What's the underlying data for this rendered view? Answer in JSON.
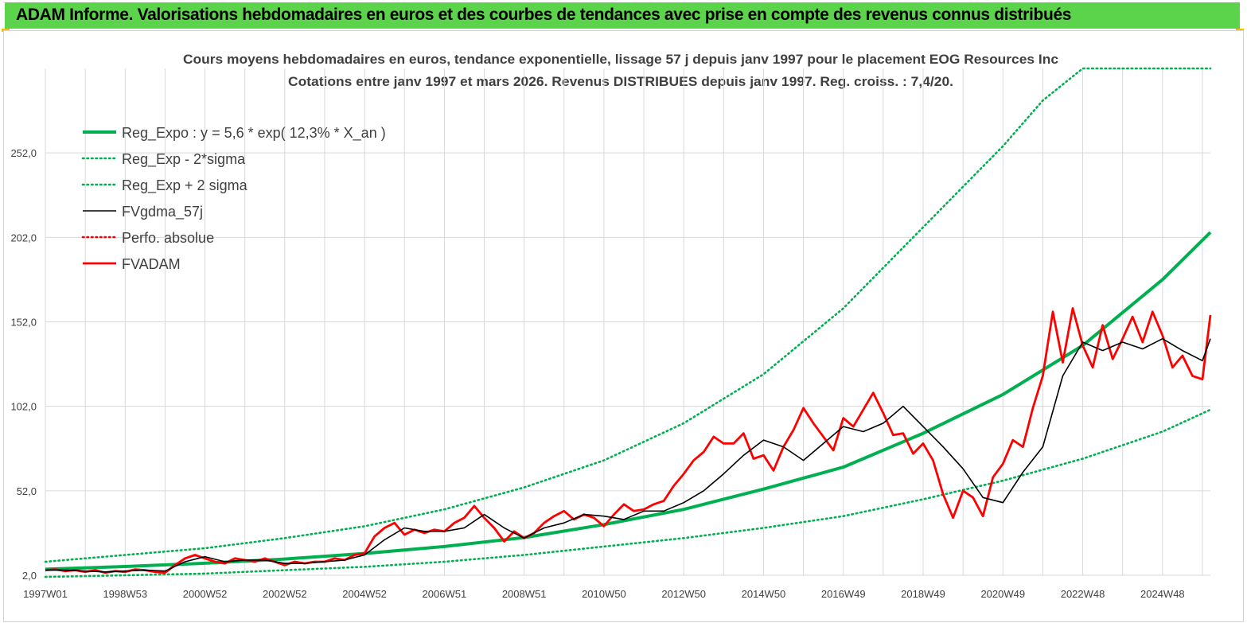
{
  "header": {
    "title": "ADAM Informe. Valorisations hebdomadaires en euros et des courbes de tendances avec prise en compte des revenus connus distribués"
  },
  "colors": {
    "banner": "#5bd34a",
    "corner_accent": "#f2c200",
    "reg_expo": "#00b050",
    "fvgdma": "#000000",
    "fvadam": "#ff0000",
    "perfo": "#ff0000",
    "grid": "#d9d9d9"
  },
  "chart_data": {
    "type": "line",
    "title": "Cours moyens hebdomadaires en euros, tendance exponentielle, lissage 57 j depuis janv 1997 pour le placement EOG Resources Inc",
    "subtitle": "Cotations entre janv 1997 et mars 2026. Revenus DISTRIBUES depuis janv 1997. Reg. croiss. : 7,4/20.",
    "xlabel": "",
    "ylabel": "",
    "x_range": [
      1997.0,
      2026.2
    ],
    "ylim": [
      2.0,
      302.0
    ],
    "y_ticks": [
      "2,0",
      "52,0",
      "102,0",
      "152,0",
      "202,0",
      "252,0"
    ],
    "x_ticks": [
      {
        "label": "1997W01",
        "x": 1997.0
      },
      {
        "label": "1998W53",
        "x": 1999.0
      },
      {
        "label": "2000W52",
        "x": 2001.0
      },
      {
        "label": "2002W52",
        "x": 2003.0
      },
      {
        "label": "2004W52",
        "x": 2005.0
      },
      {
        "label": "2006W51",
        "x": 2007.0
      },
      {
        "label": "2008W51",
        "x": 2009.0
      },
      {
        "label": "2010W50",
        "x": 2011.0
      },
      {
        "label": "2012W50",
        "x": 2013.0
      },
      {
        "label": "2014W50",
        "x": 2015.0
      },
      {
        "label": "2016W49",
        "x": 2017.0
      },
      {
        "label": "2018W49",
        "x": 2019.0
      },
      {
        "label": "2020W49",
        "x": 2021.0
      },
      {
        "label": "2022W48",
        "x": 2023.0
      },
      {
        "label": "2024W48",
        "x": 2025.0
      }
    ],
    "grid": true,
    "legend_position": "top-left",
    "series": [
      {
        "name": "Reg_Expo : y = 5,6 * exp( 12,3% *  X_an )",
        "style": "solid",
        "color": "#00b050",
        "x": [
          1997.0,
          1999.0,
          2001.0,
          2003.0,
          2005.0,
          2007.0,
          2009.0,
          2011.0,
          2013.0,
          2015.0,
          2017.0,
          2019.0,
          2021.0,
          2023.0,
          2025.0,
          2026.2
        ],
        "y": [
          5.6,
          7.2,
          9.1,
          11.6,
          14.9,
          19.0,
          24.3,
          32.0,
          41.0,
          53.0,
          66.0,
          86.0,
          109.0,
          138.0,
          177.0,
          205.0
        ]
      },
      {
        "name": "Reg_Exp - 2*sigma",
        "style": "dotted",
        "color": "#00b050",
        "x": [
          1997.0,
          1999.0,
          2001.0,
          2003.0,
          2005.0,
          2007.0,
          2009.0,
          2011.0,
          2013.0,
          2015.0,
          2017.0,
          2019.0,
          2021.0,
          2023.0,
          2025.0,
          2026.2
        ],
        "y": [
          1.0,
          2.0,
          3.0,
          5.0,
          7.0,
          10.0,
          14.0,
          19.0,
          24.0,
          30.0,
          37.0,
          47.0,
          58.0,
          71.0,
          87.0,
          100.0
        ]
      },
      {
        "name": "Reg_Exp + 2 sigma",
        "style": "dotted",
        "color": "#00b050",
        "x": [
          1997.0,
          1999.0,
          2001.0,
          2003.0,
          2005.0,
          2007.0,
          2009.0,
          2011.0,
          2013.0,
          2015.0,
          2017.0,
          2019.0,
          2021.0,
          2022.0,
          2023.0,
          2023.8,
          2026.2
        ],
        "y": [
          10.0,
          14.0,
          18.0,
          24.0,
          31.0,
          41.0,
          54.0,
          70.0,
          92.0,
          121.0,
          160.0,
          208.0,
          256.0,
          283.0,
          302.0,
          302.0,
          302.0
        ]
      },
      {
        "name": "FVgdma_57j",
        "style": "solid",
        "color": "#000000",
        "x": [
          1997.0,
          1997.5,
          1998.0,
          1998.5,
          1999.0,
          1999.5,
          2000.0,
          2000.5,
          2001.0,
          2001.5,
          2002.0,
          2002.5,
          2003.0,
          2003.5,
          2004.0,
          2004.5,
          2005.0,
          2005.5,
          2006.0,
          2006.5,
          2007.0,
          2007.5,
          2008.0,
          2008.5,
          2009.0,
          2009.5,
          2010.0,
          2010.5,
          2011.0,
          2011.5,
          2012.0,
          2012.5,
          2013.0,
          2013.5,
          2014.0,
          2014.5,
          2015.0,
          2015.5,
          2016.0,
          2016.5,
          2017.0,
          2017.5,
          2018.0,
          2018.5,
          2019.0,
          2019.5,
          2020.0,
          2020.5,
          2021.0,
          2021.5,
          2022.0,
          2022.5,
          2023.0,
          2023.5,
          2024.0,
          2024.5,
          2025.0,
          2025.5,
          2026.0,
          2026.2
        ],
        "y": [
          5.0,
          5.0,
          4.5,
          4.0,
          4.5,
          5.0,
          4.5,
          10.0,
          13.0,
          10.0,
          11.0,
          11.0,
          9.0,
          9.0,
          10.0,
          11.0,
          14.0,
          23.0,
          30.0,
          28.0,
          28.0,
          30.0,
          38.0,
          30.0,
          24.0,
          30.0,
          33.0,
          38.0,
          37.0,
          35.0,
          40.0,
          40.0,
          45.0,
          52.0,
          62.0,
          73.0,
          82.0,
          78.0,
          70.0,
          80.0,
          90.0,
          87.0,
          92.0,
          102.0,
          90.0,
          78.0,
          65.0,
          48.0,
          45.0,
          63.0,
          78.0,
          120.0,
          140.0,
          135.0,
          140.0,
          136.0,
          142.0,
          135.0,
          129.0,
          142.0
        ]
      },
      {
        "name": "Perfo. absolue",
        "style": "dotted",
        "color": "#ff0000",
        "x": [],
        "y": []
      },
      {
        "name": "FVADAM",
        "style": "solid",
        "color": "#ff0000",
        "x": [
          1997.0,
          1997.25,
          1997.5,
          1997.75,
          1998.0,
          1998.25,
          1998.5,
          1998.75,
          1999.0,
          1999.25,
          1999.5,
          1999.75,
          2000.0,
          2000.25,
          2000.5,
          2000.75,
          2001.0,
          2001.25,
          2001.5,
          2001.75,
          2002.0,
          2002.25,
          2002.5,
          2002.75,
          2003.0,
          2003.25,
          2003.5,
          2003.75,
          2004.0,
          2004.25,
          2004.5,
          2004.75,
          2005.0,
          2005.25,
          2005.5,
          2005.75,
          2006.0,
          2006.25,
          2006.5,
          2006.75,
          2007.0,
          2007.25,
          2007.5,
          2007.75,
          2008.0,
          2008.25,
          2008.5,
          2008.75,
          2009.0,
          2009.25,
          2009.5,
          2009.75,
          2010.0,
          2010.25,
          2010.5,
          2010.75,
          2011.0,
          2011.25,
          2011.5,
          2011.75,
          2012.0,
          2012.25,
          2012.5,
          2012.75,
          2013.0,
          2013.25,
          2013.5,
          2013.75,
          2014.0,
          2014.25,
          2014.5,
          2014.75,
          2015.0,
          2015.25,
          2015.5,
          2015.75,
          2016.0,
          2016.25,
          2016.5,
          2016.75,
          2017.0,
          2017.25,
          2017.5,
          2017.75,
          2018.0,
          2018.25,
          2018.5,
          2018.75,
          2019.0,
          2019.25,
          2019.5,
          2019.75,
          2020.0,
          2020.25,
          2020.5,
          2020.75,
          2021.0,
          2021.25,
          2021.5,
          2021.75,
          2022.0,
          2022.25,
          2022.5,
          2022.75,
          2023.0,
          2023.25,
          2023.5,
          2023.75,
          2024.0,
          2024.25,
          2024.5,
          2024.75,
          2025.0,
          2025.25,
          2025.5,
          2025.75,
          2026.0,
          2026.2
        ],
        "y": [
          5.0,
          5.5,
          4.5,
          5.0,
          4.0,
          5.0,
          3.5,
          4.5,
          4.0,
          5.5,
          5.0,
          4.0,
          3.5,
          8.0,
          12.0,
          14.0,
          12.0,
          10.0,
          9.0,
          12.0,
          11.0,
          10.0,
          12.0,
          10.0,
          8.0,
          10.0,
          9.0,
          10.0,
          10.0,
          12.0,
          11.0,
          14.0,
          15.0,
          25.0,
          30.0,
          33.0,
          26.0,
          29.0,
          27.0,
          29.0,
          28.0,
          33.0,
          36.0,
          43.0,
          36.0,
          30.0,
          22.0,
          28.0,
          24.0,
          27.0,
          33.0,
          37.0,
          40.0,
          35.0,
          38.0,
          36.0,
          31.0,
          38.0,
          44.0,
          40.0,
          41.0,
          44.0,
          46.0,
          55.0,
          62.0,
          70.0,
          75.0,
          84.0,
          80.0,
          80.0,
          86.0,
          71.0,
          73.0,
          64.0,
          78.0,
          88.0,
          101.0,
          92.0,
          84.0,
          76.0,
          95.0,
          90.0,
          100.0,
          110.0,
          98.0,
          85.0,
          86.0,
          74.0,
          80.0,
          70.0,
          50.0,
          36.0,
          52.0,
          48.0,
          37.0,
          60.0,
          68.0,
          82.0,
          78.0,
          101.0,
          120.0,
          158.0,
          128.0,
          160.0,
          138.0,
          125.0,
          150.0,
          130.0,
          142.0,
          155.0,
          140.0,
          158.0,
          144.0,
          125.0,
          132.0,
          120.0,
          118.0,
          156.0
        ]
      }
    ]
  }
}
